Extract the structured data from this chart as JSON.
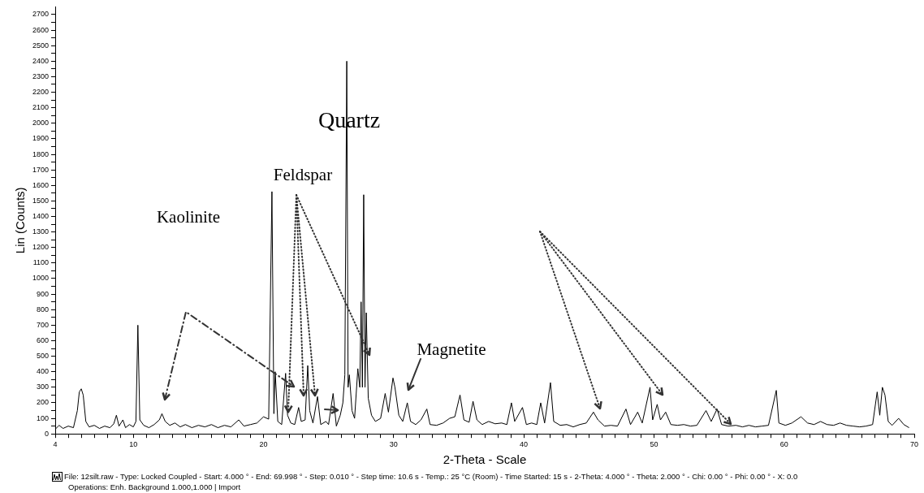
{
  "chart_data": {
    "type": "line",
    "xlabel": "2-Theta - Scale",
    "ylabel": "Lin (Counts)",
    "grid": false,
    "legend": false,
    "xlim": [
      4,
      70
    ],
    "ylim": [
      0,
      2750
    ],
    "xticks": [
      4,
      {
        "value": 5,
        "label": null
      },
      {
        "value": 6,
        "label": null
      },
      {
        "value": 7,
        "label": null
      },
      {
        "value": 8,
        "label": null
      },
      {
        "value": 9,
        "label": null
      },
      10,
      {
        "value": 11,
        "label": null
      },
      {
        "value": 12,
        "label": null
      },
      {
        "value": 13,
        "label": null
      },
      {
        "value": 14,
        "label": null
      },
      {
        "value": 15,
        "label": null
      },
      {
        "value": 16,
        "label": null
      },
      {
        "value": 17,
        "label": null
      },
      {
        "value": 18,
        "label": null
      },
      {
        "value": 19,
        "label": null
      },
      20,
      {
        "value": 21,
        "label": null
      },
      {
        "value": 22,
        "label": null
      },
      {
        "value": 23,
        "label": null
      },
      {
        "value": 24,
        "label": null
      },
      {
        "value": 25,
        "label": null
      },
      {
        "value": 26,
        "label": null
      },
      {
        "value": 27,
        "label": null
      },
      {
        "value": 28,
        "label": null
      },
      {
        "value": 29,
        "label": null
      },
      30,
      {
        "value": 31,
        "label": null
      },
      {
        "value": 32,
        "label": null
      },
      {
        "value": 33,
        "label": null
      },
      {
        "value": 34,
        "label": null
      },
      {
        "value": 35,
        "label": null
      },
      {
        "value": 36,
        "label": null
      },
      {
        "value": 37,
        "label": null
      },
      {
        "value": 38,
        "label": null
      },
      {
        "value": 39,
        "label": null
      },
      40,
      {
        "value": 41,
        "label": null
      },
      {
        "value": 42,
        "label": null
      },
      {
        "value": 43,
        "label": null
      },
      {
        "value": 44,
        "label": null
      },
      {
        "value": 45,
        "label": null
      },
      {
        "value": 46,
        "label": null
      },
      {
        "value": 47,
        "label": null
      },
      {
        "value": 48,
        "label": null
      },
      {
        "value": 49,
        "label": null
      },
      50,
      {
        "value": 51,
        "label": null
      },
      {
        "value": 52,
        "label": null
      },
      {
        "value": 53,
        "label": null
      },
      {
        "value": 54,
        "label": null
      },
      {
        "value": 55,
        "label": null
      },
      {
        "value": 56,
        "label": null
      },
      {
        "value": 57,
        "label": null
      },
      {
        "value": 58,
        "label": null
      },
      {
        "value": 59,
        "label": null
      },
      60,
      {
        "value": 61,
        "label": null
      },
      {
        "value": 62,
        "label": null
      },
      {
        "value": 63,
        "label": null
      },
      {
        "value": 64,
        "label": null
      },
      {
        "value": 65,
        "label": null
      },
      {
        "value": 66,
        "label": null
      },
      {
        "value": 67,
        "label": null
      },
      {
        "value": 68,
        "label": null
      },
      {
        "value": 69,
        "label": null
      },
      70
    ],
    "yticks": [
      0,
      {
        "value": 50,
        "label": null
      },
      100,
      {
        "value": 150,
        "label": null
      },
      200,
      {
        "value": 250,
        "label": null
      },
      300,
      {
        "value": 350,
        "label": null
      },
      400,
      {
        "value": 450,
        "label": null
      },
      500,
      {
        "value": 550,
        "label": null
      },
      600,
      {
        "value": 650,
        "label": null
      },
      700,
      {
        "value": 750,
        "label": null
      },
      800,
      {
        "value": 850,
        "label": null
      },
      900,
      {
        "value": 950,
        "label": null
      },
      1000,
      {
        "value": 1050,
        "label": null
      },
      1100,
      {
        "value": 1150,
        "label": null
      },
      1200,
      {
        "value": 1250,
        "label": null
      },
      1300,
      {
        "value": 1350,
        "label": null
      },
      1400,
      {
        "value": 1450,
        "label": null
      },
      1500,
      {
        "value": 1550,
        "label": null
      },
      1600,
      {
        "value": 1650,
        "label": null
      },
      1700,
      {
        "value": 1750,
        "label": null
      },
      1800,
      {
        "value": 1850,
        "label": null
      },
      1900,
      {
        "value": 1950,
        "label": null
      },
      2000,
      {
        "value": 2050,
        "label": null
      },
      2100,
      {
        "value": 2150,
        "label": null
      },
      2200,
      {
        "value": 2250,
        "label": null
      },
      2300,
      {
        "value": 2350,
        "label": null
      },
      2400,
      {
        "value": 2450,
        "label": null
      },
      2500,
      {
        "value": 2550,
        "label": null
      },
      2600,
      {
        "value": 2650,
        "label": null
      },
      2700
    ],
    "series": [
      {
        "color": "#000000",
        "x": [
          4.0,
          4.3,
          4.6,
          5.0,
          5.4,
          5.7,
          5.85,
          6.0,
          6.15,
          6.35,
          6.6,
          7.0,
          7.4,
          7.8,
          8.2,
          8.5,
          8.7,
          8.9,
          9.2,
          9.4,
          9.7,
          10.0,
          10.2,
          10.35,
          10.5,
          10.8,
          11.2,
          11.6,
          12.0,
          12.2,
          12.45,
          12.8,
          13.2,
          13.6,
          14.0,
          14.5,
          15.0,
          15.5,
          16.0,
          16.5,
          17.0,
          17.5,
          18.1,
          18.5,
          19.0,
          19.5,
          20.0,
          20.4,
          20.65,
          20.8,
          20.9,
          21.1,
          21.4,
          21.7,
          21.85,
          22.1,
          22.4,
          22.7,
          22.9,
          23.2,
          23.4,
          23.55,
          23.8,
          24.15,
          24.4,
          24.8,
          25.0,
          25.35,
          25.6,
          25.9,
          26.1,
          26.25,
          26.4,
          26.5,
          26.6,
          26.8,
          27.0,
          27.25,
          27.4,
          27.5,
          27.6,
          27.7,
          27.8,
          27.9,
          28.05,
          28.3,
          28.6,
          29.0,
          29.35,
          29.6,
          29.95,
          30.1,
          30.4,
          30.7,
          31.05,
          31.3,
          31.7,
          32.1,
          32.55,
          32.8,
          33.3,
          33.8,
          34.3,
          34.7,
          35.1,
          35.4,
          35.8,
          36.1,
          36.4,
          36.8,
          37.3,
          37.8,
          38.3,
          38.7,
          39.05,
          39.3,
          39.9,
          40.2,
          40.6,
          41.0,
          41.3,
          41.6,
          42.05,
          42.3,
          42.8,
          43.3,
          43.8,
          44.3,
          44.8,
          45.35,
          45.7,
          46.2,
          46.7,
          47.2,
          47.85,
          48.2,
          48.75,
          49.1,
          49.7,
          49.9,
          50.25,
          50.5,
          50.9,
          51.3,
          51.8,
          52.3,
          52.8,
          53.3,
          54.0,
          54.4,
          54.85,
          55.2,
          55.7,
          56.3,
          56.8,
          57.3,
          57.8,
          58.3,
          58.8,
          59.4,
          59.6,
          60.1,
          60.6,
          61.3,
          61.8,
          62.3,
          62.8,
          63.3,
          63.8,
          64.3,
          64.8,
          65.3,
          65.8,
          66.3,
          66.8,
          67.15,
          67.35,
          67.55,
          67.75,
          68.0,
          68.3,
          68.8,
          69.2,
          69.6
        ],
        "values": [
          30,
          55,
          35,
          50,
          40,
          150,
          270,
          290,
          250,
          80,
          45,
          55,
          35,
          50,
          40,
          65,
          120,
          50,
          90,
          40,
          60,
          45,
          80,
          700,
          90,
          55,
          40,
          60,
          90,
          130,
          80,
          55,
          70,
          45,
          60,
          40,
          55,
          45,
          60,
          40,
          55,
          45,
          90,
          50,
          60,
          70,
          110,
          95,
          1560,
          130,
          400,
          80,
          60,
          390,
          120,
          70,
          60,
          170,
          80,
          90,
          440,
          150,
          70,
          240,
          60,
          80,
          60,
          260,
          50,
          120,
          200,
          380,
          2400,
          300,
          380,
          150,
          100,
          420,
          300,
          850,
          300,
          1540,
          300,
          780,
          230,
          120,
          80,
          100,
          260,
          140,
          360,
          300,
          120,
          80,
          200,
          80,
          60,
          90,
          160,
          60,
          55,
          70,
          100,
          110,
          250,
          90,
          75,
          210,
          90,
          60,
          80,
          65,
          70,
          60,
          200,
          80,
          170,
          60,
          70,
          60,
          200,
          70,
          330,
          80,
          55,
          60,
          45,
          60,
          70,
          140,
          90,
          50,
          55,
          50,
          160,
          60,
          140,
          70,
          300,
          90,
          190,
          90,
          140,
          60,
          55,
          60,
          50,
          55,
          150,
          80,
          160,
          60,
          50,
          55,
          45,
          55,
          45,
          50,
          55,
          280,
          70,
          55,
          70,
          110,
          70,
          60,
          80,
          60,
          55,
          70,
          55,
          50,
          45,
          50,
          60,
          270,
          120,
          300,
          250,
          80,
          55,
          100,
          60,
          40
        ]
      }
    ],
    "annotations": [
      "Quartz",
      {
        "text": "Feldspar",
        "x": 21.9,
        "y": 140
      },
      "Kaolinite",
      "Magnetite",
      "File: 12silt.raw - Type: Locked Coupled - Start: 4.000 ° - End: 69.998 ° - Step: 0.010 ° - Step time: 10.6 s - Temp.: 25 °C (Room) - Time Started: 15 s - 2-Theta: 4.000 ° - Theta: 2.000 ° - Chi: 0.00 ° - Phi: 0.00 ° - X: 0.0",
      "Operations: Enh. Background 1.000,1.000 | Import"
    ]
  }
}
